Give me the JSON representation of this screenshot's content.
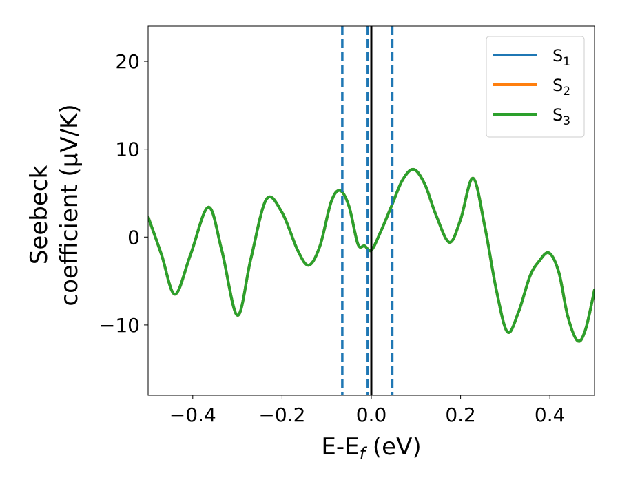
{
  "chart_data": {
    "type": "line",
    "xlabel": {
      "main": "E-E",
      "sub": "f",
      "unit": " (eV)"
    },
    "ylabel": {
      "line1": "Seebeck",
      "line2": "coefficient  (μV/K)"
    },
    "xlim": [
      -0.5,
      0.5
    ],
    "ylim": [
      -18,
      24
    ],
    "xticks": [
      -0.4,
      -0.2,
      0.0,
      0.2,
      0.4
    ],
    "xtick_labels": [
      "−0.4",
      "−0.2",
      "0.0",
      "0.2",
      "0.4"
    ],
    "yticks": [
      -10,
      0,
      10,
      20
    ],
    "ytick_labels": [
      "−10",
      "0",
      "10",
      "20"
    ],
    "grid": false,
    "legend": {
      "placement": "top-right"
    },
    "vlines": [
      {
        "x": -0.065,
        "style": "dashed",
        "color": "#1f77b4"
      },
      {
        "x": -0.008,
        "style": "dashed",
        "color": "#1f77b4"
      },
      {
        "x": 0.047,
        "style": "dashed",
        "color": "#1f77b4"
      },
      {
        "x": 0.0,
        "style": "solid",
        "color": "#000000"
      }
    ],
    "series": [
      {
        "name": {
          "main": "S",
          "sub": "1"
        },
        "color": "#1f77b4",
        "x": [
          -0.5,
          -0.47,
          -0.44,
          -0.405,
          -0.365,
          -0.335,
          -0.3,
          -0.27,
          -0.235,
          -0.2,
          -0.165,
          -0.14,
          -0.115,
          -0.09,
          -0.07,
          -0.05,
          -0.03,
          -0.015,
          0.0,
          0.02,
          0.045,
          0.07,
          0.095,
          0.12,
          0.145,
          0.175,
          0.2,
          0.228,
          0.255,
          0.28,
          0.305,
          0.33,
          0.355,
          0.375,
          0.398,
          0.42,
          0.44,
          0.462,
          0.48,
          0.5
        ],
        "y": [
          2.3,
          -2.0,
          -6.5,
          -2.0,
          3.4,
          -1.5,
          -8.9,
          -2.5,
          4.3,
          2.8,
          -1.5,
          -3.2,
          -1.0,
          4.0,
          5.3,
          3.5,
          -0.8,
          -1.0,
          -1.5,
          0.5,
          3.5,
          6.5,
          7.7,
          6.0,
          2.5,
          -0.6,
          2.0,
          6.7,
          1.0,
          -6.0,
          -10.8,
          -8.5,
          -4.5,
          -2.8,
          -1.8,
          -4.0,
          -9.0,
          -11.8,
          -10.5,
          -6.0
        ]
      },
      {
        "name": {
          "main": "S",
          "sub": "2"
        },
        "color": "#ff7f0e",
        "x": [
          -0.5,
          -0.47,
          -0.44,
          -0.405,
          -0.365,
          -0.335,
          -0.3,
          -0.27,
          -0.235,
          -0.2,
          -0.165,
          -0.14,
          -0.115,
          -0.09,
          -0.07,
          -0.05,
          -0.03,
          -0.015,
          0.0,
          0.02,
          0.045,
          0.07,
          0.095,
          0.12,
          0.145,
          0.175,
          0.2,
          0.228,
          0.255,
          0.28,
          0.305,
          0.33,
          0.355,
          0.375,
          0.398,
          0.42,
          0.44,
          0.462,
          0.48,
          0.5
        ],
        "y": [
          2.3,
          -2.0,
          -6.5,
          -2.0,
          3.4,
          -1.5,
          -8.9,
          -2.5,
          4.3,
          2.8,
          -1.5,
          -3.2,
          -1.0,
          4.0,
          5.3,
          3.5,
          -0.8,
          -1.0,
          -1.5,
          0.5,
          3.5,
          6.5,
          7.7,
          6.0,
          2.5,
          -0.6,
          2.0,
          6.7,
          1.0,
          -6.0,
          -10.8,
          -8.5,
          -4.5,
          -2.8,
          -1.8,
          -4.0,
          -9.0,
          -11.8,
          -10.5,
          -6.0
        ]
      },
      {
        "name": {
          "main": "S",
          "sub": "3"
        },
        "color": "#2ca02c",
        "x": [
          -0.5,
          -0.47,
          -0.44,
          -0.405,
          -0.365,
          -0.335,
          -0.3,
          -0.27,
          -0.235,
          -0.2,
          -0.165,
          -0.14,
          -0.115,
          -0.09,
          -0.07,
          -0.05,
          -0.03,
          -0.015,
          0.0,
          0.02,
          0.045,
          0.07,
          0.095,
          0.12,
          0.145,
          0.175,
          0.2,
          0.228,
          0.255,
          0.28,
          0.305,
          0.33,
          0.355,
          0.375,
          0.398,
          0.42,
          0.44,
          0.462,
          0.48,
          0.5
        ],
        "y": [
          2.3,
          -2.0,
          -6.5,
          -2.0,
          3.4,
          -1.5,
          -8.9,
          -2.5,
          4.3,
          2.8,
          -1.5,
          -3.2,
          -1.0,
          4.0,
          5.3,
          3.5,
          -0.8,
          -1.0,
          -1.5,
          0.5,
          3.5,
          6.5,
          7.7,
          6.0,
          2.5,
          -0.6,
          2.0,
          6.7,
          1.0,
          -6.0,
          -10.8,
          -8.5,
          -4.5,
          -2.8,
          -1.8,
          -4.0,
          -9.0,
          -11.8,
          -10.5,
          -6.0
        ]
      }
    ]
  }
}
